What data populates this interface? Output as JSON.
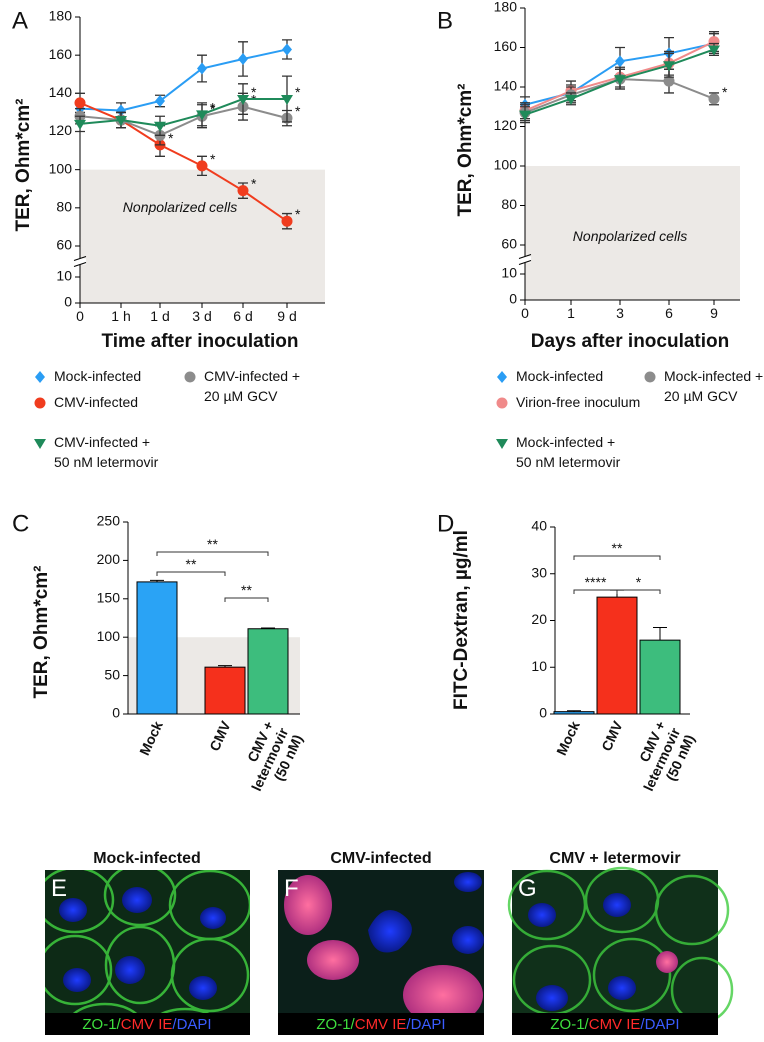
{
  "chart_data": [
    {
      "type": "line",
      "panel": "A",
      "xlabel": "Time after inoculation",
      "ylabel": "TER, Ohm*cm²",
      "categories": [
        "0",
        "1 h",
        "1 d",
        "3 d",
        "6 d",
        "9 d"
      ],
      "ylim": [
        0,
        180
      ],
      "yticks": [
        0,
        10,
        60,
        80,
        100,
        120,
        140,
        160,
        180
      ],
      "y_break": [
        10,
        60
      ],
      "shade": {
        "below": 100,
        "label": "Nonpolarized cells"
      },
      "series": [
        {
          "name": "Mock-infected",
          "color": "#2a9df4",
          "marker": "diamond",
          "values": [
            132,
            131,
            136,
            153,
            158,
            163
          ],
          "errors": [
            4,
            4,
            3,
            7,
            9,
            5
          ],
          "annotations": [
            null,
            null,
            null,
            null,
            null,
            null
          ]
        },
        {
          "name": "CMV-infected",
          "color": "#f03c1e",
          "marker": "circle",
          "values": [
            135,
            126,
            113,
            102,
            89,
            73
          ],
          "errors": [
            5,
            4,
            6,
            5,
            4,
            4
          ],
          "annotations": [
            null,
            null,
            "*",
            "*",
            "*",
            "*"
          ]
        },
        {
          "name": "CMV-infected +\n20 µM GCV",
          "color": "#8c8c8c",
          "marker": "circle",
          "values": [
            128,
            126,
            118,
            128,
            133,
            127
          ],
          "errors": [
            4,
            4,
            5,
            6,
            7,
            4
          ],
          "annotations": [
            null,
            null,
            null,
            "*",
            "*",
            "*"
          ]
        },
        {
          "name": "CMV-infected +\n50 nM letermovir",
          "color": "#1f8a5a",
          "marker": "triangle",
          "values": [
            124,
            126,
            123,
            129,
            137,
            137
          ],
          "errors": [
            4,
            4,
            5,
            6,
            8,
            12
          ],
          "annotations": [
            null,
            null,
            null,
            "*",
            "*",
            "*"
          ]
        }
      ]
    },
    {
      "type": "line",
      "panel": "B",
      "xlabel": "Days after inoculation",
      "ylabel": "TER, Ohm*cm²",
      "categories": [
        "0",
        "1",
        "3",
        "6",
        "9"
      ],
      "ylim": [
        0,
        180
      ],
      "yticks": [
        0,
        10,
        60,
        80,
        100,
        120,
        140,
        160,
        180
      ],
      "y_break": [
        10,
        60
      ],
      "shade": {
        "below": 100,
        "label": "Nonpolarized cells"
      },
      "series": [
        {
          "name": "Mock-infected",
          "color": "#2a9df4",
          "marker": "diamond",
          "values": [
            131,
            137,
            153,
            157,
            162
          ],
          "errors": [
            4,
            4,
            7,
            8,
            5
          ],
          "annotations": [
            null,
            null,
            null,
            null,
            null
          ]
        },
        {
          "name": "Virion-free inoculum",
          "color": "#f08a8a",
          "marker": "circle",
          "values": [
            128,
            138,
            145,
            152,
            163
          ],
          "errors": [
            4,
            5,
            5,
            6,
            5
          ],
          "annotations": [
            null,
            null,
            null,
            null,
            null
          ]
        },
        {
          "name": "Mock-infected +\n20 µM GCV",
          "color": "#8c8c8c",
          "marker": "circle",
          "values": [
            127,
            136,
            144,
            143,
            134
          ],
          "errors": [
            4,
            4,
            5,
            6,
            3
          ],
          "annotations": [
            null,
            null,
            null,
            null,
            "*"
          ]
        },
        {
          "name": "Mock-infected +\n50 nM letermovir",
          "color": "#1f8a5a",
          "marker": "triangle",
          "values": [
            126,
            134,
            144,
            151,
            159
          ],
          "errors": [
            4,
            3,
            5,
            6,
            3
          ],
          "annotations": [
            null,
            null,
            null,
            null,
            null
          ]
        }
      ]
    },
    {
      "type": "bar",
      "panel": "C",
      "ylabel": "TER, Ohm*cm²",
      "categories": [
        "Mock",
        "CMV",
        "CMV +\nletermovir\n(50 nM)"
      ],
      "values": [
        172,
        61,
        111
      ],
      "errors": [
        2,
        2,
        1
      ],
      "colors": [
        "#2aa3f5",
        "#f5301c",
        "#3dbd7d"
      ],
      "ylim": [
        0,
        250
      ],
      "yticks": [
        0,
        50,
        100,
        150,
        200,
        250
      ],
      "shade": {
        "below": 100
      },
      "comparisons": [
        {
          "between": [
            0,
            2
          ],
          "label": "**"
        },
        {
          "between": [
            0,
            1
          ],
          "label": "**"
        },
        {
          "between": [
            1,
            2
          ],
          "label": "**"
        }
      ]
    },
    {
      "type": "bar",
      "panel": "D",
      "ylabel": "FITC-Dextran, µg/ml",
      "categories": [
        "Mock",
        "CMV",
        "CMV +\nletermovir\n(50 nM)"
      ],
      "values": [
        0.5,
        25,
        15.8
      ],
      "errors": [
        0.2,
        1.5,
        2.7
      ],
      "colors": [
        "#2aa3f5",
        "#f5301c",
        "#3dbd7d"
      ],
      "ylim": [
        0,
        40
      ],
      "yticks": [
        0,
        10,
        20,
        30,
        40
      ],
      "comparisons": [
        {
          "between": [
            0,
            2
          ],
          "label": "**"
        },
        {
          "between": [
            0,
            1
          ],
          "label": "****"
        },
        {
          "between": [
            1,
            2
          ],
          "label": "*"
        }
      ]
    }
  ],
  "images": [
    {
      "letter": "E",
      "title": "Mock-infected",
      "caption": [
        "ZO-1/",
        "CMV IE",
        "/DAPI"
      ]
    },
    {
      "letter": "F",
      "title": "CMV-infected",
      "caption": [
        "ZO-1/",
        "CMV IE",
        "/DAPI"
      ]
    },
    {
      "letter": "G",
      "title": "CMV + letermovir",
      "caption": [
        "ZO-1/",
        "CMV IE",
        "/DAPI"
      ]
    }
  ]
}
